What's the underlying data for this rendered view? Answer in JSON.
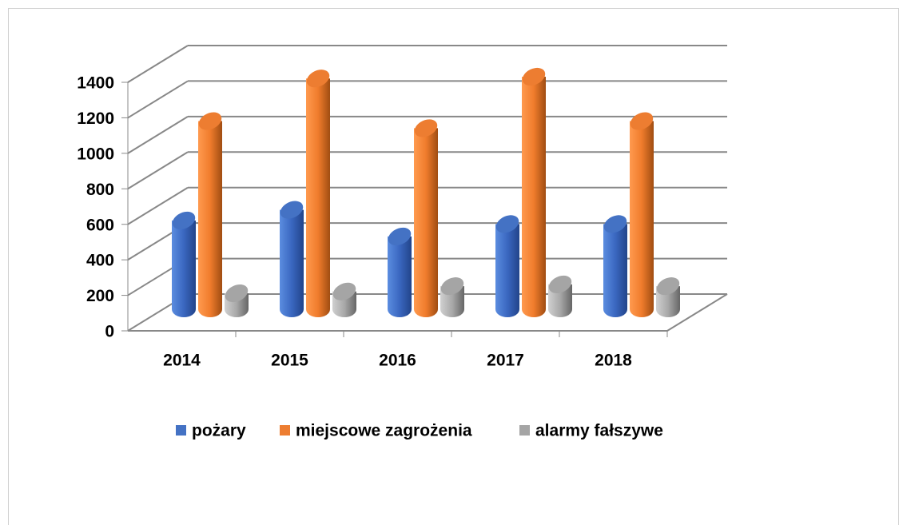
{
  "chart_data": {
    "type": "bar3d",
    "categories": [
      "2014",
      "2015",
      "2016",
      "2017",
      "2018"
    ],
    "series": [
      {
        "name": "pożary",
        "color": "#4472c4",
        "values": [
          500,
          560,
          410,
          480,
          480
        ]
      },
      {
        "name": "miejscowe zagrożenia",
        "color": "#ed7d31",
        "values": [
          1060,
          1300,
          1020,
          1310,
          1060
        ]
      },
      {
        "name": "alarmy fałszywe",
        "color": "#a5a5a5",
        "values": [
          90,
          100,
          130,
          140,
          130
        ]
      }
    ],
    "ylim": [
      0,
      1400
    ],
    "yticks": [
      0,
      200,
      400,
      600,
      800,
      1000,
      1200,
      1400
    ],
    "grid": true,
    "legend": "bottom"
  }
}
